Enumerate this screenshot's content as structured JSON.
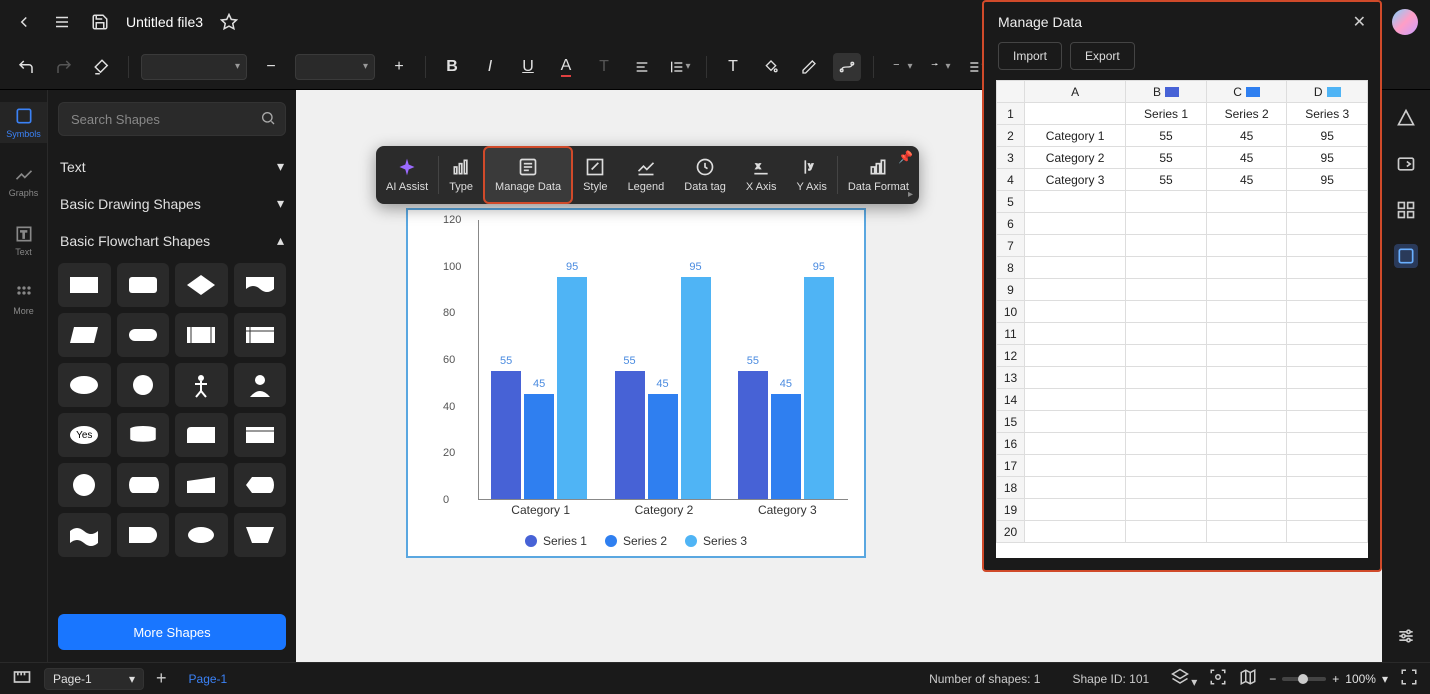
{
  "header": {
    "filename": "Untitled file3",
    "export_label": "Export"
  },
  "toolbar": {
    "font_size_value": ""
  },
  "rail": {
    "symbols": "Symbols",
    "graphs": "Graphs",
    "text": "Text",
    "more": "More"
  },
  "left_panel": {
    "search_placeholder": "Search Shapes",
    "sections": {
      "text": "Text",
      "basic_drawing": "Basic Drawing Shapes",
      "basic_flowchart": "Basic Flowchart Shapes"
    },
    "yes_label": "Yes",
    "more_shapes": "More Shapes"
  },
  "ctx_toolbar": {
    "ai_assist": "AI Assist",
    "type": "Type",
    "manage_data": "Manage Data",
    "style": "Style",
    "legend": "Legend",
    "data_tag": "Data tag",
    "x_axis": "X Axis",
    "y_axis": "Y Axis",
    "data_format": "Data Format"
  },
  "chart": {
    "type": "bar",
    "categories": [
      "Category 1",
      "Category 2",
      "Category 3"
    ],
    "series": [
      "Series 1",
      "Series 2",
      "Series 3"
    ],
    "values": [
      [
        55,
        45,
        95
      ],
      [
        55,
        45,
        95
      ],
      [
        55,
        45,
        95
      ]
    ],
    "series_colors": [
      "#4762d6",
      "#2f7ff0",
      "#4fb4f5"
    ],
    "ylim": [
      0,
      120
    ],
    "ytick_step": 20,
    "background_color": "#ffffff",
    "selection_border_color": "#5aa7e0",
    "label_fontsize": 11
  },
  "data_panel": {
    "title": "Manage Data",
    "import_label": "Import",
    "export_label": "Export",
    "highlight_color": "#d04a2a",
    "columns": [
      "A",
      "B",
      "C",
      "D"
    ],
    "column_swatches": {
      "B": "#4762d6",
      "C": "#2f7ff0",
      "D": "#4fb4f5"
    },
    "rows_header": [
      "",
      "Series 1",
      "Series 2",
      "Series 3"
    ],
    "rows": [
      [
        "Category 1",
        "55",
        "45",
        "95"
      ],
      [
        "Category 2",
        "55",
        "45",
        "95"
      ],
      [
        "Category 3",
        "55",
        "45",
        "95"
      ]
    ],
    "visible_row_count": 20
  },
  "bottom": {
    "page_select": "Page-1",
    "page_tab": "Page-1",
    "shapes_count": "Number of shapes: 1",
    "shape_id": "Shape ID: 101",
    "zoom": "100%"
  }
}
